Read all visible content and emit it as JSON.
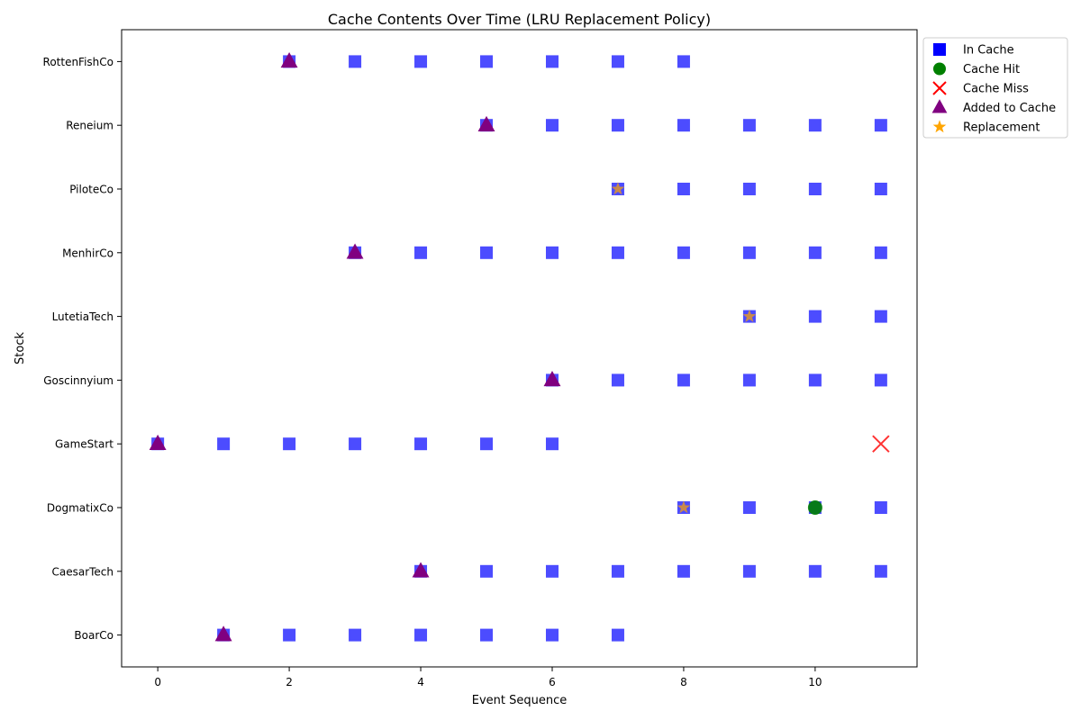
{
  "chart_data": {
    "type": "scatter",
    "title": "Cache Contents Over Time (LRU Replacement Policy)",
    "xlabel": "Event Sequence",
    "ylabel": "Stock",
    "xlim": [
      -0.55,
      11.55
    ],
    "xticks": [
      0,
      2,
      4,
      6,
      8,
      10
    ],
    "categories": [
      "BoarCo",
      "CaesarTech",
      "DogmatixCo",
      "GameStart",
      "Goscinnyium",
      "LutetiaTech",
      "MenhirCo",
      "PiloteCo",
      "Reneium",
      "RottenFishCo"
    ],
    "grid": false,
    "legend_position": "outside-top-right",
    "series": [
      {
        "name": "In Cache",
        "marker": "square",
        "color": "#0000ff",
        "points": [
          {
            "x": 0,
            "y": "GameStart"
          },
          {
            "x": 1,
            "y": "GameStart"
          },
          {
            "x": 1,
            "y": "BoarCo"
          },
          {
            "x": 2,
            "y": "GameStart"
          },
          {
            "x": 2,
            "y": "BoarCo"
          },
          {
            "x": 2,
            "y": "RottenFishCo"
          },
          {
            "x": 3,
            "y": "GameStart"
          },
          {
            "x": 3,
            "y": "BoarCo"
          },
          {
            "x": 3,
            "y": "RottenFishCo"
          },
          {
            "x": 3,
            "y": "MenhirCo"
          },
          {
            "x": 4,
            "y": "GameStart"
          },
          {
            "x": 4,
            "y": "BoarCo"
          },
          {
            "x": 4,
            "y": "RottenFishCo"
          },
          {
            "x": 4,
            "y": "MenhirCo"
          },
          {
            "x": 4,
            "y": "CaesarTech"
          },
          {
            "x": 5,
            "y": "GameStart"
          },
          {
            "x": 5,
            "y": "BoarCo"
          },
          {
            "x": 5,
            "y": "RottenFishCo"
          },
          {
            "x": 5,
            "y": "MenhirCo"
          },
          {
            "x": 5,
            "y": "CaesarTech"
          },
          {
            "x": 5,
            "y": "Reneium"
          },
          {
            "x": 6,
            "y": "GameStart"
          },
          {
            "x": 6,
            "y": "BoarCo"
          },
          {
            "x": 6,
            "y": "RottenFishCo"
          },
          {
            "x": 6,
            "y": "MenhirCo"
          },
          {
            "x": 6,
            "y": "CaesarTech"
          },
          {
            "x": 6,
            "y": "Reneium"
          },
          {
            "x": 6,
            "y": "Goscinnyium"
          },
          {
            "x": 7,
            "y": "BoarCo"
          },
          {
            "x": 7,
            "y": "RottenFishCo"
          },
          {
            "x": 7,
            "y": "MenhirCo"
          },
          {
            "x": 7,
            "y": "CaesarTech"
          },
          {
            "x": 7,
            "y": "Reneium"
          },
          {
            "x": 7,
            "y": "Goscinnyium"
          },
          {
            "x": 7,
            "y": "PiloteCo"
          },
          {
            "x": 8,
            "y": "RottenFishCo"
          },
          {
            "x": 8,
            "y": "MenhirCo"
          },
          {
            "x": 8,
            "y": "CaesarTech"
          },
          {
            "x": 8,
            "y": "Reneium"
          },
          {
            "x": 8,
            "y": "Goscinnyium"
          },
          {
            "x": 8,
            "y": "PiloteCo"
          },
          {
            "x": 8,
            "y": "DogmatixCo"
          },
          {
            "x": 9,
            "y": "MenhirCo"
          },
          {
            "x": 9,
            "y": "CaesarTech"
          },
          {
            "x": 9,
            "y": "Reneium"
          },
          {
            "x": 9,
            "y": "Goscinnyium"
          },
          {
            "x": 9,
            "y": "PiloteCo"
          },
          {
            "x": 9,
            "y": "DogmatixCo"
          },
          {
            "x": 9,
            "y": "LutetiaTech"
          },
          {
            "x": 10,
            "y": "MenhirCo"
          },
          {
            "x": 10,
            "y": "CaesarTech"
          },
          {
            "x": 10,
            "y": "Reneium"
          },
          {
            "x": 10,
            "y": "Goscinnyium"
          },
          {
            "x": 10,
            "y": "PiloteCo"
          },
          {
            "x": 10,
            "y": "DogmatixCo"
          },
          {
            "x": 10,
            "y": "LutetiaTech"
          },
          {
            "x": 11,
            "y": "MenhirCo"
          },
          {
            "x": 11,
            "y": "CaesarTech"
          },
          {
            "x": 11,
            "y": "Reneium"
          },
          {
            "x": 11,
            "y": "Goscinnyium"
          },
          {
            "x": 11,
            "y": "PiloteCo"
          },
          {
            "x": 11,
            "y": "DogmatixCo"
          },
          {
            "x": 11,
            "y": "LutetiaTech"
          }
        ]
      },
      {
        "name": "Cache Hit",
        "marker": "circle",
        "color": "#008000",
        "points": [
          {
            "x": 10,
            "y": "DogmatixCo"
          }
        ]
      },
      {
        "name": "Cache Miss",
        "marker": "x",
        "color": "#ff0000",
        "points": [
          {
            "x": 11,
            "y": "GameStart"
          }
        ]
      },
      {
        "name": "Added to Cache",
        "marker": "triangle",
        "color": "#800080",
        "points": [
          {
            "x": 0,
            "y": "GameStart"
          },
          {
            "x": 1,
            "y": "BoarCo"
          },
          {
            "x": 2,
            "y": "RottenFishCo"
          },
          {
            "x": 3,
            "y": "MenhirCo"
          },
          {
            "x": 4,
            "y": "CaesarTech"
          },
          {
            "x": 5,
            "y": "Reneium"
          },
          {
            "x": 6,
            "y": "Goscinnyium"
          }
        ]
      },
      {
        "name": "Replacement",
        "marker": "star",
        "color": "#ffa500",
        "points": [
          {
            "x": 7,
            "y": "PiloteCo"
          },
          {
            "x": 8,
            "y": "DogmatixCo"
          },
          {
            "x": 9,
            "y": "LutetiaTech"
          }
        ]
      }
    ]
  }
}
